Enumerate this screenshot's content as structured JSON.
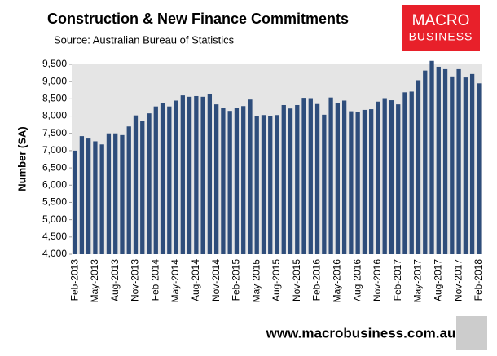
{
  "chart_data": {
    "type": "bar",
    "title": "Construction & New Finance Commitments",
    "subtitle": "Source: Australian Bureau of Statistics",
    "y_label": "Number (SA)",
    "color": "#2e4d7b",
    "categories": [
      "Feb-2013",
      null,
      null,
      "May-2013",
      null,
      null,
      "Aug-2013",
      null,
      null,
      "Nov-2013",
      null,
      null,
      "Feb-2014",
      null,
      null,
      "May-2014",
      null,
      null,
      "Aug-2014",
      null,
      null,
      "Nov-2014",
      null,
      null,
      "Feb-2015",
      null,
      null,
      "May-2015",
      null,
      null,
      "Aug-2015",
      null,
      null,
      "Nov-2015",
      null,
      null,
      "Feb-2016",
      null,
      null,
      "May-2016",
      null,
      null,
      "Aug-2016",
      null,
      null,
      "Nov-2016",
      null,
      null,
      "Feb-2017",
      null,
      null,
      "May-2017",
      null,
      null,
      "Aug-2017",
      null,
      null,
      "Nov-2017",
      null,
      null,
      "Feb-2018"
    ],
    "values": [
      7000,
      7420,
      7350,
      7270,
      7180,
      7500,
      7500,
      7450,
      7700,
      8020,
      7850,
      8080,
      8280,
      8370,
      8280,
      8450,
      8600,
      8560,
      8580,
      8560,
      8630,
      8340,
      8230,
      8150,
      8230,
      8290,
      8480,
      8010,
      8030,
      8010,
      8030,
      8320,
      8220,
      8320,
      8530,
      8520,
      8350,
      8040,
      8540,
      8370,
      8450,
      8140,
      8130,
      8180,
      8200,
      8420,
      8520,
      8460,
      8340,
      8690,
      8710,
      9040,
      9320,
      9600,
      9430,
      9360,
      9150,
      9360,
      9120,
      9220,
      8950
    ],
    "ylim": [
      4000,
      9500
    ],
    "yticks": [
      {
        "value": 4000,
        "label": "4,000"
      },
      {
        "value": 4500,
        "label": "4,500"
      },
      {
        "value": 5000,
        "label": "5,000"
      },
      {
        "value": 5500,
        "label": "5,500"
      },
      {
        "value": 6000,
        "label": "6,000"
      },
      {
        "value": 6500,
        "label": "6,500"
      },
      {
        "value": 7000,
        "label": "7,000"
      },
      {
        "value": 7500,
        "label": "7,500"
      },
      {
        "value": 8000,
        "label": "8,000"
      },
      {
        "value": 8500,
        "label": "8,500"
      },
      {
        "value": 9000,
        "label": "9,000"
      },
      {
        "value": 9500,
        "label": "9,500"
      }
    ],
    "grid": false
  },
  "branding": {
    "logo_top": "MACRO",
    "logo_bottom": "BUSINESS",
    "website": "www.macrobusiness.com.au"
  }
}
